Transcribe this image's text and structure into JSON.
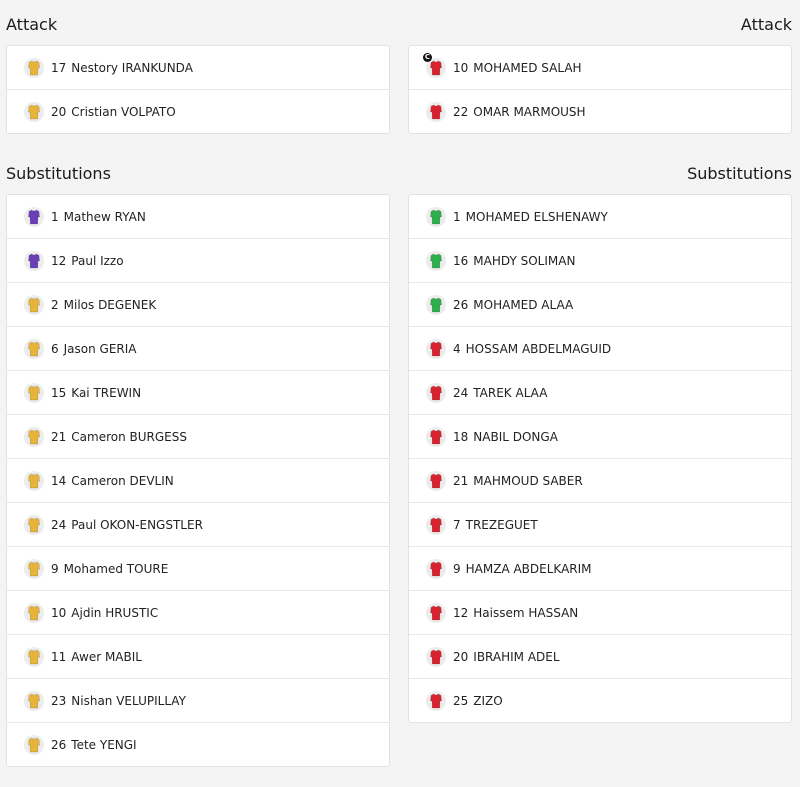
{
  "left": {
    "sections": [
      {
        "title": "Attack",
        "players": [
          {
            "number": 17,
            "name": "Nestory IRANKUNDA",
            "color": "#e6b43a"
          },
          {
            "number": 20,
            "name": "Cristian VOLPATO",
            "color": "#e6b43a"
          }
        ]
      },
      {
        "title": "Substitutions",
        "players": [
          {
            "number": 1,
            "name": "Mathew RYAN",
            "color": "#6a3fb5"
          },
          {
            "number": 12,
            "name": "Paul Izzo",
            "color": "#6a3fb5"
          },
          {
            "number": 2,
            "name": "Milos DEGENEK",
            "color": "#e6b43a"
          },
          {
            "number": 6,
            "name": "Jason GERIA",
            "color": "#e6b43a"
          },
          {
            "number": 15,
            "name": "Kai TREWIN",
            "color": "#e6b43a"
          },
          {
            "number": 21,
            "name": "Cameron BURGESS",
            "color": "#e6b43a"
          },
          {
            "number": 14,
            "name": "Cameron DEVLIN",
            "color": "#e6b43a"
          },
          {
            "number": 24,
            "name": "Paul OKON-ENGSTLER",
            "color": "#e6b43a"
          },
          {
            "number": 9,
            "name": "Mohamed TOURE",
            "color": "#e6b43a"
          },
          {
            "number": 10,
            "name": "Ajdin HRUSTIC",
            "color": "#e6b43a"
          },
          {
            "number": 11,
            "name": "Awer MABIL",
            "color": "#e6b43a"
          },
          {
            "number": 23,
            "name": "Nishan VELUPILLAY",
            "color": "#e6b43a"
          },
          {
            "number": 26,
            "name": "Tete YENGI",
            "color": "#e6b43a"
          }
        ]
      }
    ]
  },
  "right": {
    "sections": [
      {
        "title": "Attack",
        "players": [
          {
            "number": 10,
            "name": "MOHAMED SALAH",
            "color": "#d8232f",
            "badge": "C"
          },
          {
            "number": 22,
            "name": "OMAR MARMOUSH",
            "color": "#d8232f"
          }
        ]
      },
      {
        "title": "Substitutions",
        "players": [
          {
            "number": 1,
            "name": "MOHAMED ELSHENAWY",
            "color": "#2fae4e"
          },
          {
            "number": 16,
            "name": "MAHDY SOLIMAN",
            "color": "#2fae4e"
          },
          {
            "number": 26,
            "name": "MOHAMED ALAA",
            "color": "#2fae4e"
          },
          {
            "number": 4,
            "name": "HOSSAM ABDELMAGUID",
            "color": "#d8232f"
          },
          {
            "number": 24,
            "name": "TAREK ALAA",
            "color": "#d8232f"
          },
          {
            "number": 18,
            "name": "NABIL DONGA",
            "color": "#d8232f"
          },
          {
            "number": 21,
            "name": "MAHMOUD SABER",
            "color": "#d8232f"
          },
          {
            "number": 7,
            "name": "TREZEGUET",
            "color": "#d8232f"
          },
          {
            "number": 9,
            "name": "HAMZA ABDELKARIM",
            "color": "#d8232f"
          },
          {
            "number": 12,
            "name": "Haissem HASSAN",
            "color": "#d8232f"
          },
          {
            "number": 20,
            "name": "IBRAHIM ADEL",
            "color": "#d8232f"
          },
          {
            "number": 25,
            "name": "ZIZO",
            "color": "#d8232f"
          }
        ]
      }
    ]
  }
}
